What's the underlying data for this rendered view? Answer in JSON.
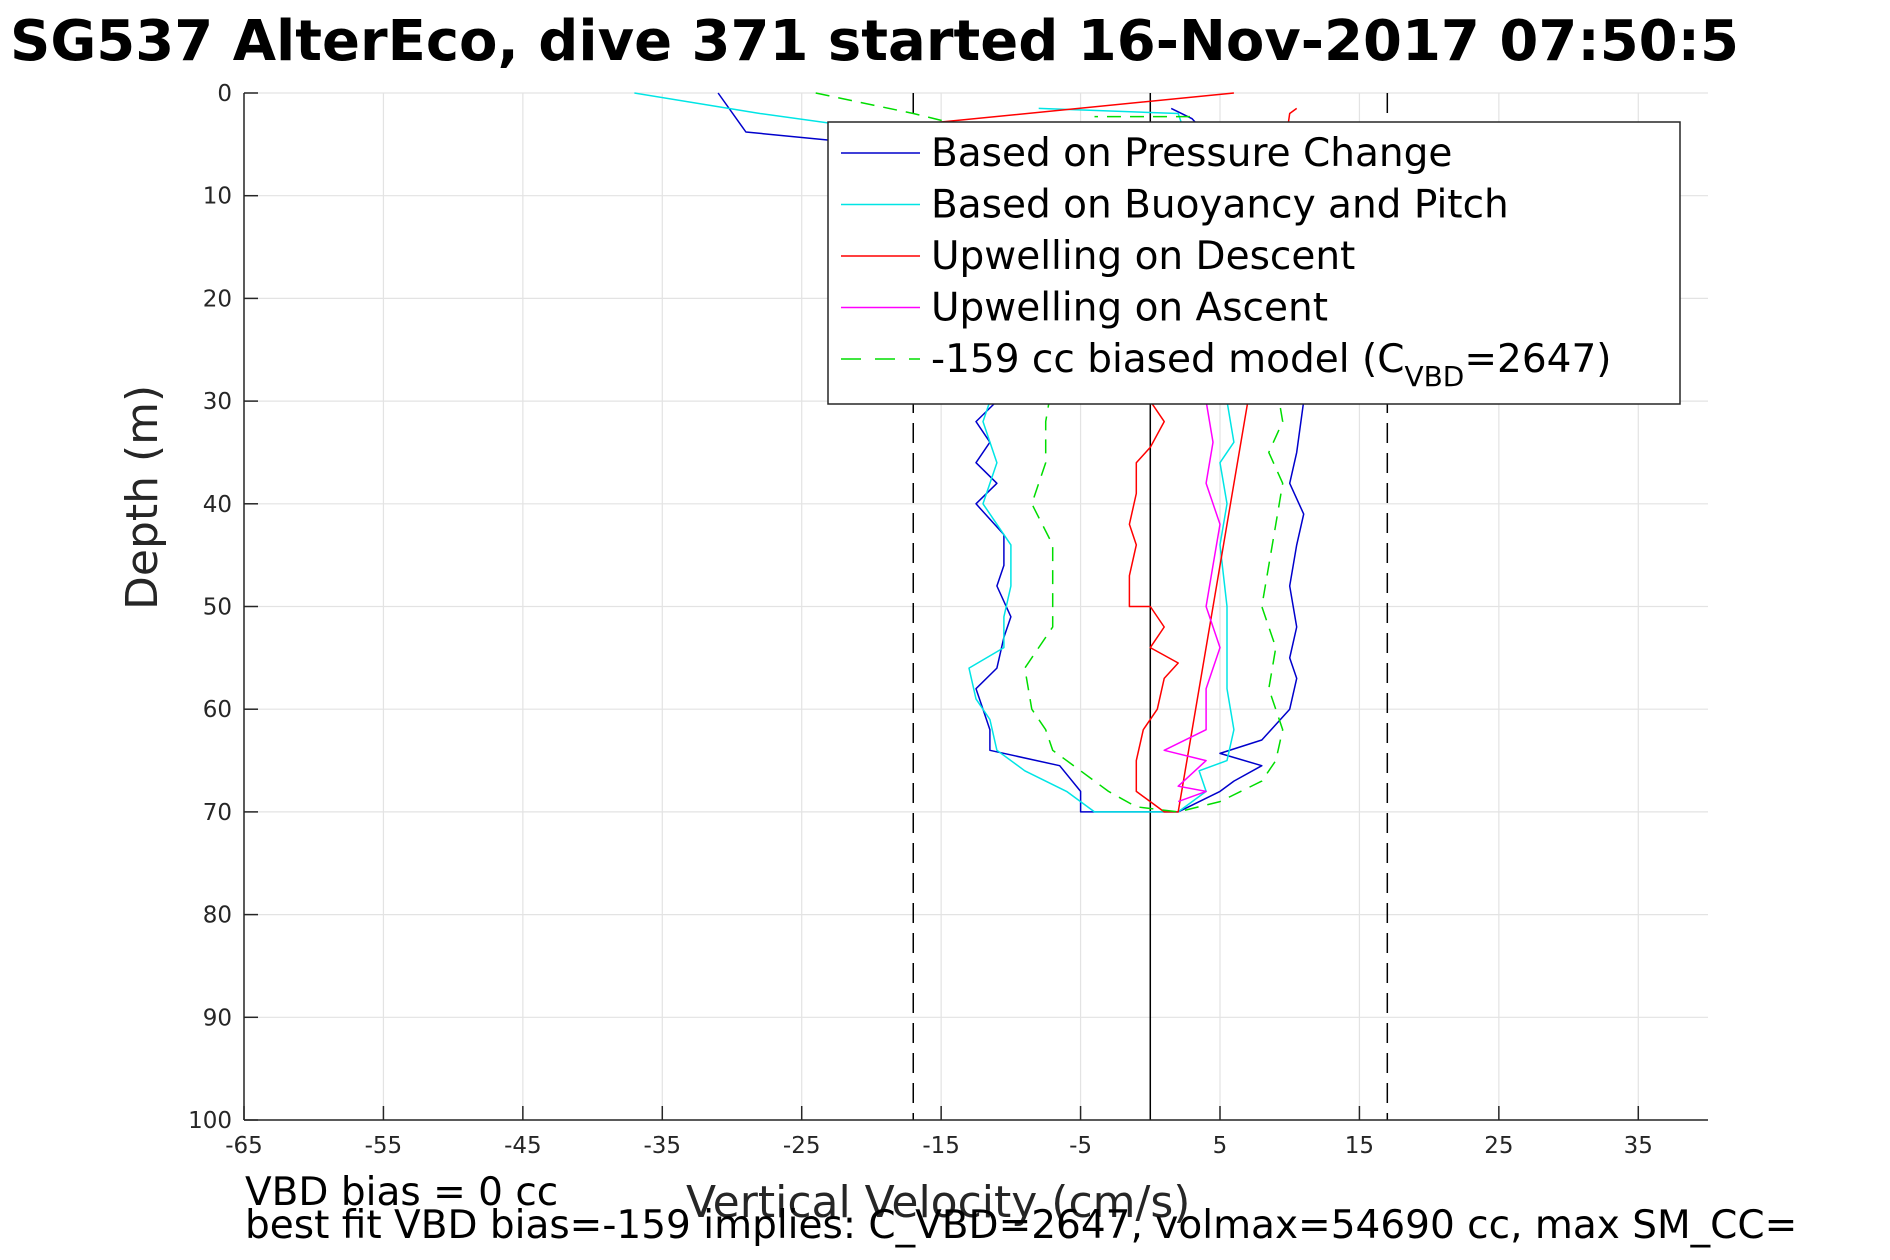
{
  "title": "SG537 AlterEco, dive 371 started 16-Nov-2017 07:50:5",
  "chart_data": {
    "type": "line",
    "xlabel": "Vertical Velocity (cm/s)",
    "ylabel": "Depth (m)",
    "xlim": [
      -65,
      40
    ],
    "ylim": [
      0,
      100
    ],
    "y_reversed": true,
    "grid": true,
    "legend_position": "top-right",
    "x_ticks": [
      -65,
      -55,
      -45,
      -35,
      -25,
      -15,
      -5,
      5,
      15,
      25,
      35
    ],
    "y_ticks": [
      0,
      10,
      20,
      30,
      40,
      50,
      60,
      70,
      80,
      90,
      100
    ],
    "reference_lines": [
      {
        "x": -17,
        "style": "dashed",
        "color": "#000000"
      },
      {
        "x": 0,
        "style": "solid",
        "color": "#000000"
      },
      {
        "x": 17,
        "style": "dashed",
        "color": "#000000"
      }
    ],
    "series": [
      {
        "name": "Based on Pressure Change",
        "color": "#0000cc",
        "dash": false,
        "points": [
          [
            -31,
            0
          ],
          [
            -29,
            3.8
          ],
          [
            -20,
            5
          ],
          [
            -14,
            12
          ],
          [
            -12,
            20
          ],
          [
            -11,
            25
          ],
          [
            -11,
            30
          ],
          [
            -12.5,
            32
          ],
          [
            -11.5,
            34
          ],
          [
            -12.5,
            36
          ],
          [
            -11,
            38
          ],
          [
            -12.5,
            40
          ],
          [
            -10.5,
            43
          ],
          [
            -10.5,
            46
          ],
          [
            -11,
            48
          ],
          [
            -10,
            51
          ],
          [
            -10.5,
            53
          ],
          [
            -11,
            56
          ],
          [
            -12.5,
            58
          ],
          [
            -12,
            60
          ],
          [
            -11.5,
            62
          ],
          [
            -11.5,
            64
          ],
          [
            -6.5,
            65.5
          ],
          [
            -5,
            68
          ],
          [
            -5,
            70
          ],
          [
            0,
            70
          ],
          [
            2,
            70
          ],
          [
            5,
            68
          ],
          [
            6,
            67
          ],
          [
            8,
            65.5
          ],
          [
            5,
            64.3
          ],
          [
            8,
            63
          ],
          [
            10,
            60
          ],
          [
            10.5,
            57
          ],
          [
            10,
            55
          ],
          [
            10.5,
            52
          ],
          [
            10,
            48
          ],
          [
            10.5,
            44
          ],
          [
            11,
            41
          ],
          [
            10,
            38
          ],
          [
            10.5,
            35
          ],
          [
            11,
            30
          ],
          [
            10,
            20
          ],
          [
            8,
            10
          ],
          [
            3,
            2.5
          ],
          [
            1.5,
            1.5
          ]
        ]
      },
      {
        "name": "Based on Buoyancy and Pitch",
        "color": "#00e5e5",
        "dash": false,
        "points": [
          [
            -37,
            0
          ],
          [
            -28,
            2
          ],
          [
            -20,
            3.5
          ],
          [
            -14,
            10
          ],
          [
            -12,
            20
          ],
          [
            -11,
            28
          ],
          [
            -12,
            32
          ],
          [
            -11,
            36
          ],
          [
            -12,
            40
          ],
          [
            -10,
            44
          ],
          [
            -10,
            48
          ],
          [
            -10.5,
            51
          ],
          [
            -10.5,
            54
          ],
          [
            -13,
            56
          ],
          [
            -12.5,
            59
          ],
          [
            -11.5,
            61
          ],
          [
            -11,
            64
          ],
          [
            -9,
            66
          ],
          [
            -6,
            68
          ],
          [
            -4,
            70
          ],
          [
            0,
            70
          ],
          [
            2,
            70
          ],
          [
            4,
            68
          ],
          [
            3.5,
            66
          ],
          [
            5.5,
            65
          ],
          [
            6,
            62
          ],
          [
            5.5,
            58
          ],
          [
            5.5,
            54
          ],
          [
            5.5,
            50
          ],
          [
            5,
            44
          ],
          [
            5.5,
            40
          ],
          [
            5,
            36
          ],
          [
            6,
            34
          ],
          [
            5.5,
            30
          ],
          [
            5,
            20
          ],
          [
            4,
            10
          ],
          [
            2,
            2
          ],
          [
            -8,
            1.5
          ]
        ]
      },
      {
        "name": "Upwelling on Descent",
        "color": "#ff0000",
        "dash": false,
        "points": [
          [
            6,
            0
          ],
          [
            -20,
            3.5
          ],
          [
            -14,
            10
          ],
          [
            -10,
            20
          ],
          [
            -6,
            25
          ],
          [
            0,
            30
          ],
          [
            1,
            32
          ],
          [
            0,
            34.5
          ],
          [
            -1,
            36
          ],
          [
            -1,
            39
          ],
          [
            -1.5,
            42
          ],
          [
            -1,
            44
          ],
          [
            -1.5,
            47
          ],
          [
            -1.5,
            50
          ],
          [
            0,
            50
          ],
          [
            1,
            52
          ],
          [
            0,
            54
          ],
          [
            2,
            55.5
          ],
          [
            1,
            57
          ],
          [
            0.5,
            60
          ],
          [
            -0.5,
            62
          ],
          [
            -1,
            65
          ],
          [
            -1,
            68
          ],
          [
            0,
            69
          ],
          [
            1,
            70
          ],
          [
            2,
            70
          ],
          [
            7,
            30
          ],
          [
            10,
            2
          ],
          [
            10.5,
            1.5
          ]
        ]
      },
      {
        "name": "Upwelling on Ascent",
        "color": "#ff00ff",
        "dash": false,
        "points": [
          [
            4,
            30
          ],
          [
            4.5,
            34
          ],
          [
            4,
            38
          ],
          [
            5,
            42
          ],
          [
            4.5,
            46
          ],
          [
            4,
            50
          ],
          [
            5,
            54
          ],
          [
            4,
            58
          ],
          [
            4,
            62
          ],
          [
            1,
            64
          ],
          [
            4,
            65
          ],
          [
            2,
            67.5
          ],
          [
            4,
            68
          ],
          [
            2,
            69
          ]
        ]
      },
      {
        "name": "-159 cc biased model (C_{VBD}=2647)",
        "color": "#00dd00",
        "dash": true,
        "points": [
          [
            -24,
            0
          ],
          [
            -17,
            2
          ],
          [
            -14,
            3
          ],
          [
            -10,
            10
          ],
          [
            -8,
            20
          ],
          [
            -7,
            28
          ],
          [
            -7.5,
            32
          ],
          [
            -7.5,
            36
          ],
          [
            -8.5,
            40
          ],
          [
            -7,
            44
          ],
          [
            -7,
            48
          ],
          [
            -7,
            52
          ],
          [
            -9,
            56
          ],
          [
            -8.5,
            60
          ],
          [
            -7.5,
            62
          ],
          [
            -7,
            64
          ],
          [
            -5,
            66
          ],
          [
            -3,
            68
          ],
          [
            -1,
            69.5
          ],
          [
            2,
            70
          ],
          [
            5,
            69
          ],
          [
            8,
            67
          ],
          [
            9,
            65
          ],
          [
            9.5,
            62
          ],
          [
            8.5,
            58
          ],
          [
            9,
            54
          ],
          [
            8,
            50
          ],
          [
            8.5,
            46
          ],
          [
            9,
            42
          ],
          [
            9.5,
            38
          ],
          [
            8.5,
            35
          ],
          [
            9.5,
            32
          ],
          [
            8,
            20
          ],
          [
            5,
            10
          ],
          [
            3,
            2.3
          ],
          [
            -4,
            2.3
          ]
        ]
      }
    ],
    "legend": [
      {
        "label": "Based on Pressure Change",
        "color": "#0000cc",
        "dash": false
      },
      {
        "label": "Based on Buoyancy and Pitch",
        "color": "#00e5e5",
        "dash": false
      },
      {
        "label": "Upwelling on Descent",
        "color": "#ff0000",
        "dash": false
      },
      {
        "label": "Upwelling on Ascent",
        "color": "#ff00ff",
        "dash": false
      },
      {
        "label_main": "-159 cc biased model (C",
        "label_sub": "VBD",
        "label_tail": "=2647)",
        "color": "#00dd00",
        "dash": true
      }
    ]
  },
  "notes": {
    "line1": "VBD bias = 0 cc",
    "line2": "best fit VBD bias=-159 implies: C_VBD=2647, volmax=54690 cc, max SM_CC="
  }
}
